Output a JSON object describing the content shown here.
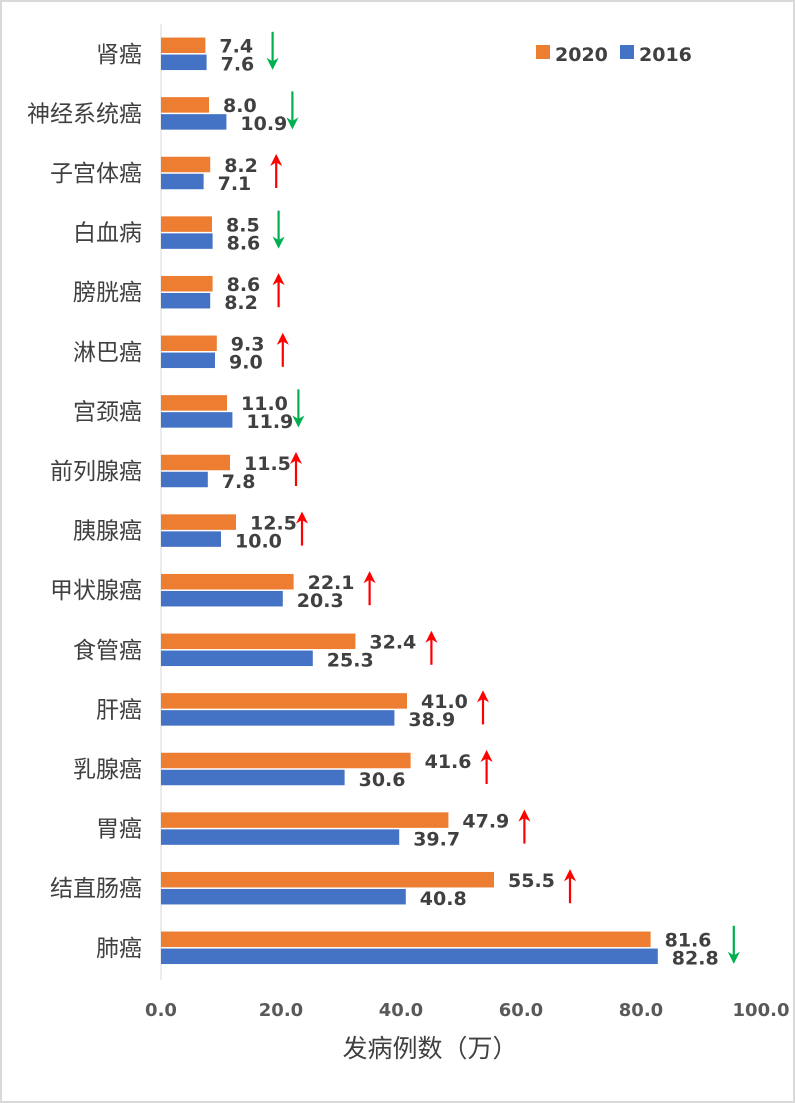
{
  "chart_data": {
    "type": "bar",
    "orientation": "horizontal",
    "categories": [
      "肾癌",
      "神经系统癌",
      "子宫体癌",
      "白血病",
      "膀胱癌",
      "淋巴癌",
      "宫颈癌",
      "前列腺癌",
      "胰腺癌",
      "甲状腺癌",
      "食管癌",
      "肝癌",
      "乳腺癌",
      "胃癌",
      "结直肠癌",
      "肺癌"
    ],
    "series": [
      {
        "name": "2020",
        "color": "#ed7d31",
        "values": [
          7.4,
          8.0,
          8.2,
          8.5,
          8.6,
          9.3,
          11.0,
          11.5,
          12.5,
          22.1,
          32.4,
          41.0,
          41.6,
          47.9,
          55.5,
          81.6
        ],
        "labels": [
          "7.4",
          "8.0",
          "8.2",
          "8.5",
          "8.6",
          "9.3",
          "11.0",
          "11.5",
          "12.5",
          "22.1",
          "32.4",
          "41.0",
          "41.6",
          "47.9",
          "55.5",
          "81.6"
        ]
      },
      {
        "name": "2016",
        "color": "#4472c4",
        "values": [
          7.6,
          10.9,
          7.1,
          8.6,
          8.2,
          9.0,
          11.9,
          7.8,
          10.0,
          20.3,
          25.3,
          38.9,
          30.6,
          39.7,
          40.8,
          82.8
        ],
        "labels": [
          "7.6",
          "10.9",
          "7.1",
          "8.6",
          "8.2",
          "9.0",
          "11.9",
          "7.8",
          "10.0",
          "20.3",
          "25.3",
          "38.9",
          "30.6",
          "39.7",
          "40.8",
          "82.8"
        ]
      }
    ],
    "trend": [
      "down",
      "down",
      "up",
      "down",
      "up",
      "up",
      "down",
      "up",
      "up",
      "up",
      "up",
      "up",
      "up",
      "up",
      "up",
      "down"
    ],
    "trend_colors": {
      "up": "#ff0000",
      "down": "#00b050"
    },
    "title": "",
    "xlabel": "发病例数（万）",
    "ylabel": "",
    "xlim": [
      0,
      100
    ],
    "xticks": [
      0,
      20,
      40,
      60,
      80,
      100
    ],
    "xtick_labels": [
      "0.0",
      "20.0",
      "40.0",
      "60.0",
      "80.0",
      "100.0"
    ],
    "legend_position": "top-right",
    "grid": false
  }
}
